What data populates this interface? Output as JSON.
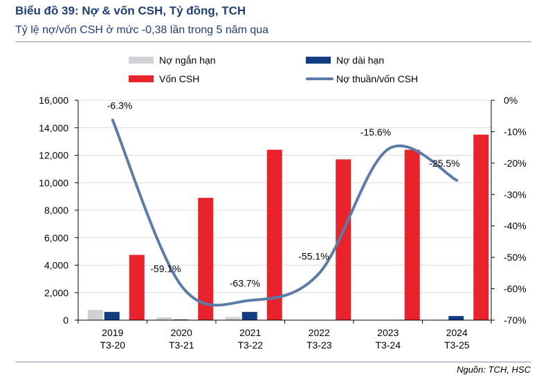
{
  "header": {
    "title": "Biểu đồ 39: Nợ & vốn CSH, Tỷ đồng, TCH",
    "subtitle": "Tỷ lệ nợ/vốn CSH ở mức -0,38 lần trong 5 năm qua"
  },
  "footer": {
    "source": "Nguồn: TCH, HSC"
  },
  "colors": {
    "short_debt": "#cfd1d5",
    "long_debt": "#123d80",
    "equity": "#e8232c",
    "net_debt_ratio": "#5b7ca8",
    "title": "#1f3f73"
  },
  "chart_data": {
    "type": "bar+line",
    "categories": [
      [
        "2019",
        "T3-20"
      ],
      [
        "2020",
        "T3-21"
      ],
      [
        "2021",
        "T3-22"
      ],
      [
        "2022",
        "T3-23"
      ],
      [
        "2023",
        "T3-24"
      ],
      [
        "2024",
        "T3-25"
      ]
    ],
    "series": [
      {
        "name": "Nợ ngắn hạn",
        "type": "bar",
        "axis": "left",
        "color_key": "short_debt",
        "values": [
          750,
          200,
          230,
          20,
          20,
          30
        ]
      },
      {
        "name": "Nợ dài hạn",
        "type": "bar",
        "axis": "left",
        "color_key": "long_debt",
        "values": [
          600,
          50,
          600,
          10,
          20,
          300
        ]
      },
      {
        "name": "Vốn CSH",
        "type": "bar",
        "axis": "left",
        "color_key": "equity",
        "values": [
          4750,
          8900,
          12400,
          11700,
          12400,
          13500
        ]
      },
      {
        "name": "Nợ thuần/vốn CSH",
        "type": "line",
        "axis": "right",
        "color_key": "net_debt_ratio",
        "values": [
          -6.3,
          -59.1,
          -63.7,
          -55.1,
          -15.6,
          -25.5
        ],
        "labels": [
          "-6.3%",
          "-59.1%",
          "-63.7%",
          "-55.1%",
          "-15.6%",
          "-25.5%"
        ]
      }
    ],
    "left_axis": {
      "min": 0,
      "max": 16000,
      "ticks": [
        0,
        2000,
        4000,
        6000,
        8000,
        10000,
        12000,
        14000,
        16000
      ],
      "tick_labels": [
        "0",
        "2,000",
        "4,000",
        "6,000",
        "8,000",
        "10,000",
        "12,000",
        "14,000",
        "16,000"
      ]
    },
    "right_axis": {
      "min": -70,
      "max": 0,
      "ticks": [
        0,
        -10,
        -20,
        -30,
        -40,
        -50,
        -60,
        -70
      ],
      "tick_labels": [
        "0%",
        "-10%",
        "-20%",
        "-30%",
        "-40%",
        "-50%",
        "-60%",
        "-70%"
      ]
    },
    "gridlines": true,
    "legend_position": "top"
  }
}
